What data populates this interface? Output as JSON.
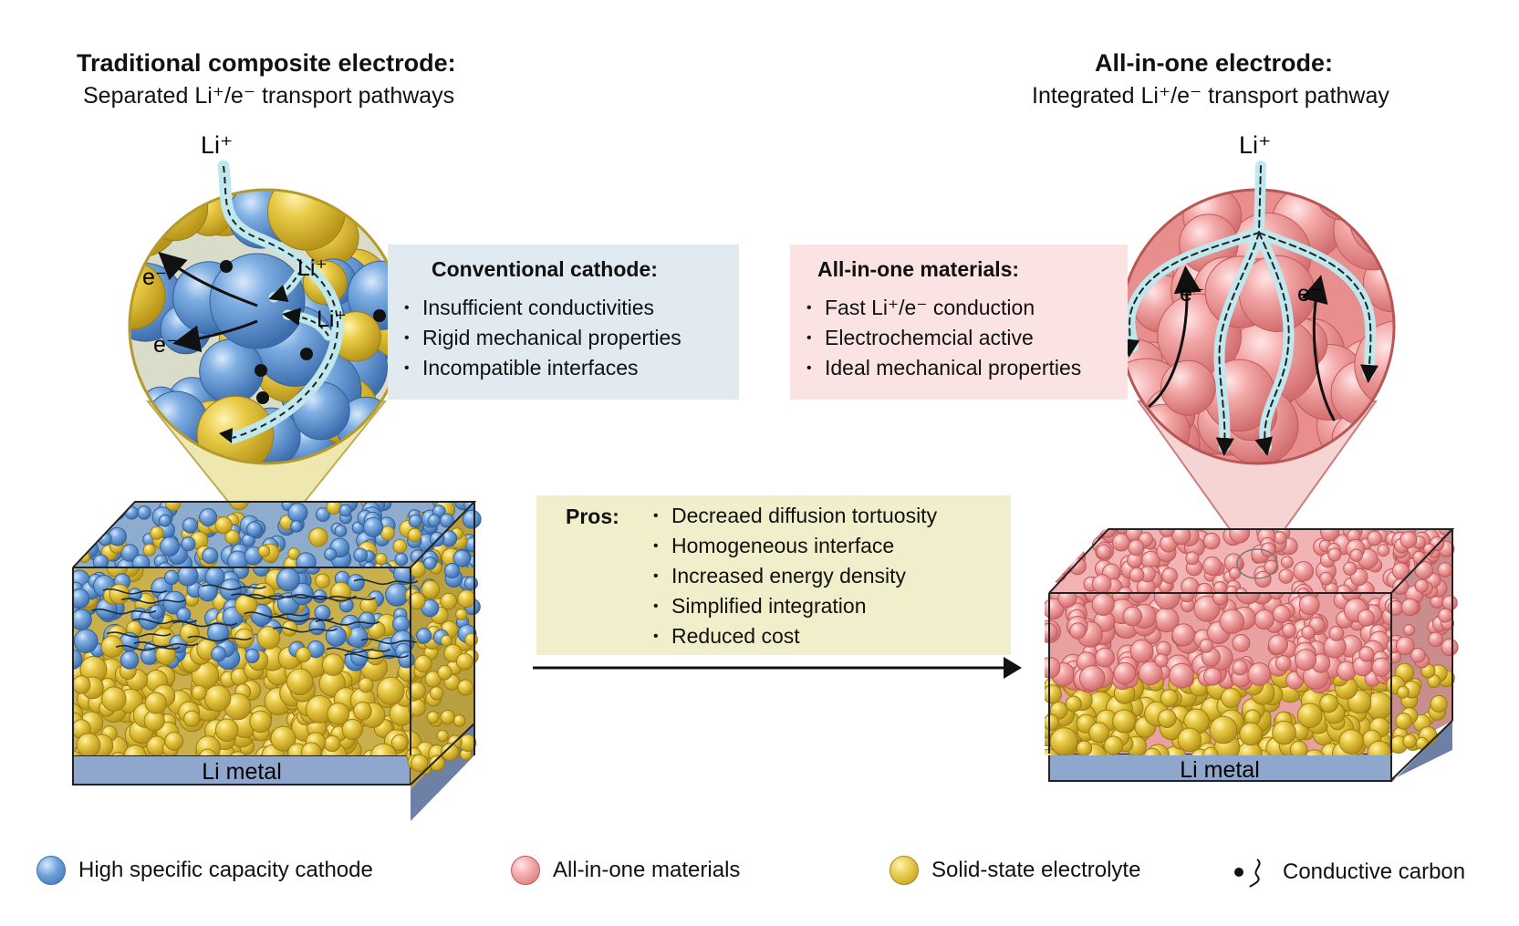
{
  "left": {
    "title": "Traditional composite electrode:",
    "subtitle": "Separated Li⁺/e⁻ transport pathways",
    "li_top": "Li⁺",
    "li_inner_1": "Li⁺",
    "li_inner_2": "Li⁺",
    "e_1": "e⁻",
    "e_2": "e⁻",
    "base_label": "Li metal",
    "box": {
      "heading": "Conventional cathode:",
      "items": [
        "Insufficient conductivities",
        "Rigid mechanical properties",
        "Incompatible interfaces"
      ]
    }
  },
  "right": {
    "title": "All-in-one electrode:",
    "subtitle": "Integrated Li⁺/e⁻ transport pathway",
    "li_top": "Li⁺",
    "e_1": "e⁻",
    "e_2": "e⁻",
    "base_label": "Li metal",
    "box": {
      "heading": "All-in-one materials:",
      "items": [
        "Fast Li⁺/e⁻ conduction",
        "Electrochemcial active",
        "Ideal mechanical properties"
      ]
    }
  },
  "pros": {
    "label": "Pros:",
    "items": [
      "Decreaed diffusion tortuosity",
      "Homogeneous interface",
      "Increased energy density",
      "Simplified integration",
      "Reduced cost"
    ]
  },
  "legend": [
    {
      "label": "High specific capacity cathode",
      "icon": "blue-particle-icon",
      "color": "#6a9fd8"
    },
    {
      "label": "All-in-one materials",
      "icon": "pink-particle-icon",
      "color": "#f2a6a6"
    },
    {
      "label": "Solid-state electrolyte",
      "icon": "yellow-particle-icon",
      "color": "#e6c84a"
    },
    {
      "label": "Conductive carbon",
      "icon": "carbon-icon",
      "color": "#111111"
    }
  ],
  "colors": {
    "cathode": "#6a9fd8",
    "aio": "#f2a6a6",
    "electrolyte": "#e6c84a",
    "li_metal": "#8fa7cc",
    "path": "#bfe8ee",
    "box_blue": "#e3ebf2",
    "box_pink": "#fbe5e5",
    "box_yellow": "#f2f0cc"
  }
}
